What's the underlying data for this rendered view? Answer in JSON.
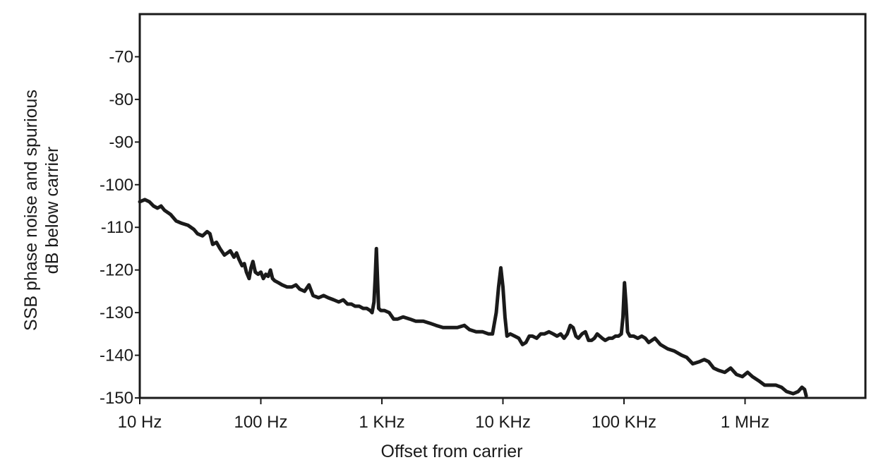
{
  "chart_data": {
    "type": "line",
    "title": "",
    "xlabel": "Offset from carrier",
    "ylabel_lines": [
      "SSB phase noise and spurious",
      "dB below carrier"
    ],
    "x_scale": "log",
    "xlim": [
      10,
      10000000
    ],
    "ylim": [
      -150,
      -60
    ],
    "x_ticks": [
      {
        "value": 10,
        "label": "10 Hz"
      },
      {
        "value": 100,
        "label": "100 Hz"
      },
      {
        "value": 1000,
        "label": "1 KHz"
      },
      {
        "value": 10000,
        "label": "10 KHz"
      },
      {
        "value": 100000,
        "label": "100 KHz"
      },
      {
        "value": 1000000,
        "label": "1 MHz"
      }
    ],
    "y_ticks": [
      {
        "value": -70,
        "label": "-70"
      },
      {
        "value": -80,
        "label": "-80"
      },
      {
        "value": -90,
        "label": "-90"
      },
      {
        "value": -100,
        "label": "-100"
      },
      {
        "value": -110,
        "label": "-110"
      },
      {
        "value": -120,
        "label": "-120"
      },
      {
        "value": -130,
        "label": "-130"
      },
      {
        "value": -140,
        "label": "-140"
      },
      {
        "value": -150,
        "label": "-150"
      }
    ],
    "grid": false,
    "line_color": "#1a1a1a",
    "series": [
      {
        "points": [
          [
            10,
            -104
          ],
          [
            11,
            -103.5
          ],
          [
            12,
            -104
          ],
          [
            13,
            -105
          ],
          [
            14,
            -105.5
          ],
          [
            15,
            -105
          ],
          [
            16,
            -106
          ],
          [
            18,
            -107
          ],
          [
            20,
            -108.5
          ],
          [
            22,
            -109
          ],
          [
            25,
            -109.5
          ],
          [
            28,
            -110.5
          ],
          [
            30,
            -111.5
          ],
          [
            33,
            -112
          ],
          [
            36,
            -111
          ],
          [
            38,
            -111.5
          ],
          [
            40,
            -114
          ],
          [
            43,
            -113.5
          ],
          [
            46,
            -115
          ],
          [
            50,
            -116.5
          ],
          [
            53,
            -116
          ],
          [
            56,
            -115.5
          ],
          [
            60,
            -117
          ],
          [
            63,
            -116
          ],
          [
            66,
            -117.5
          ],
          [
            70,
            -119
          ],
          [
            73,
            -118.5
          ],
          [
            76,
            -120.5
          ],
          [
            80,
            -122
          ],
          [
            83,
            -119.5
          ],
          [
            86,
            -118
          ],
          [
            90,
            -120.5
          ],
          [
            95,
            -121
          ],
          [
            100,
            -120.5
          ],
          [
            105,
            -122
          ],
          [
            110,
            -121
          ],
          [
            115,
            -121.5
          ],
          [
            120,
            -120
          ],
          [
            125,
            -122
          ],
          [
            130,
            -122.5
          ],
          [
            140,
            -123
          ],
          [
            150,
            -123.5
          ],
          [
            165,
            -124
          ],
          [
            180,
            -124
          ],
          [
            195,
            -123.5
          ],
          [
            210,
            -124.5
          ],
          [
            230,
            -125
          ],
          [
            250,
            -123.5
          ],
          [
            270,
            -126
          ],
          [
            300,
            -126.5
          ],
          [
            330,
            -126
          ],
          [
            360,
            -126.5
          ],
          [
            400,
            -127
          ],
          [
            440,
            -127.5
          ],
          [
            480,
            -127
          ],
          [
            520,
            -128
          ],
          [
            560,
            -128
          ],
          [
            600,
            -128.5
          ],
          [
            650,
            -128.5
          ],
          [
            700,
            -129
          ],
          [
            750,
            -129
          ],
          [
            800,
            -129.5
          ],
          [
            830,
            -130
          ],
          [
            860,
            -127.5
          ],
          [
            880,
            -122
          ],
          [
            900,
            -115
          ],
          [
            920,
            -122
          ],
          [
            940,
            -129
          ],
          [
            980,
            -129.5
          ],
          [
            1050,
            -129.5
          ],
          [
            1150,
            -130
          ],
          [
            1250,
            -131.5
          ],
          [
            1350,
            -131.5
          ],
          [
            1500,
            -131
          ],
          [
            1700,
            -131.5
          ],
          [
            1900,
            -132
          ],
          [
            2200,
            -132
          ],
          [
            2500,
            -132.5
          ],
          [
            2800,
            -133
          ],
          [
            3200,
            -133.5
          ],
          [
            3700,
            -133.5
          ],
          [
            4200,
            -133.5
          ],
          [
            4800,
            -133
          ],
          [
            5300,
            -134
          ],
          [
            6000,
            -134.5
          ],
          [
            6800,
            -134.5
          ],
          [
            7600,
            -135
          ],
          [
            8200,
            -135
          ],
          [
            8800,
            -130
          ],
          [
            9200,
            -124
          ],
          [
            9600,
            -119.5
          ],
          [
            10000,
            -124
          ],
          [
            10400,
            -131
          ],
          [
            10800,
            -135.5
          ],
          [
            11500,
            -135
          ],
          [
            12500,
            -135.5
          ],
          [
            13500,
            -136
          ],
          [
            14500,
            -137.5
          ],
          [
            15500,
            -137
          ],
          [
            16500,
            -135.5
          ],
          [
            17500,
            -135.5
          ],
          [
            19000,
            -136
          ],
          [
            20500,
            -135
          ],
          [
            22000,
            -135
          ],
          [
            24000,
            -134.5
          ],
          [
            26000,
            -135
          ],
          [
            28000,
            -135.5
          ],
          [
            30000,
            -135
          ],
          [
            32000,
            -136
          ],
          [
            34000,
            -135
          ],
          [
            36000,
            -133
          ],
          [
            38000,
            -133.5
          ],
          [
            40000,
            -135.5
          ],
          [
            42000,
            -136
          ],
          [
            45000,
            -135
          ],
          [
            48000,
            -134.5
          ],
          [
            51000,
            -136.5
          ],
          [
            54000,
            -136.5
          ],
          [
            57000,
            -136
          ],
          [
            60000,
            -135
          ],
          [
            63000,
            -135.5
          ],
          [
            66000,
            -136
          ],
          [
            70000,
            -136.5
          ],
          [
            75000,
            -136
          ],
          [
            80000,
            -136
          ],
          [
            85000,
            -135.5
          ],
          [
            90000,
            -135.5
          ],
          [
            95000,
            -135
          ],
          [
            98000,
            -131
          ],
          [
            101000,
            -123
          ],
          [
            104000,
            -128
          ],
          [
            107000,
            -134.5
          ],
          [
            112000,
            -135.5
          ],
          [
            120000,
            -135.5
          ],
          [
            130000,
            -136
          ],
          [
            140000,
            -135.5
          ],
          [
            150000,
            -136
          ],
          [
            160000,
            -137
          ],
          [
            180000,
            -136
          ],
          [
            200000,
            -137.5
          ],
          [
            230000,
            -138.5
          ],
          [
            260000,
            -139
          ],
          [
            300000,
            -140
          ],
          [
            330000,
            -140.5
          ],
          [
            370000,
            -142
          ],
          [
            420000,
            -141.5
          ],
          [
            460000,
            -141
          ],
          [
            500000,
            -141.5
          ],
          [
            550000,
            -143
          ],
          [
            600000,
            -143.5
          ],
          [
            680000,
            -144
          ],
          [
            760000,
            -143
          ],
          [
            850000,
            -144.5
          ],
          [
            950000,
            -145
          ],
          [
            1050000,
            -144
          ],
          [
            1150000,
            -145
          ],
          [
            1300000,
            -146
          ],
          [
            1450000,
            -147
          ],
          [
            1600000,
            -147
          ],
          [
            1800000,
            -147
          ],
          [
            2000000,
            -147.5
          ],
          [
            2200000,
            -148.5
          ],
          [
            2500000,
            -149
          ],
          [
            2750000,
            -148.5
          ],
          [
            2950000,
            -147.5
          ],
          [
            3100000,
            -148
          ],
          [
            3200000,
            -149.5
          ]
        ]
      }
    ]
  }
}
